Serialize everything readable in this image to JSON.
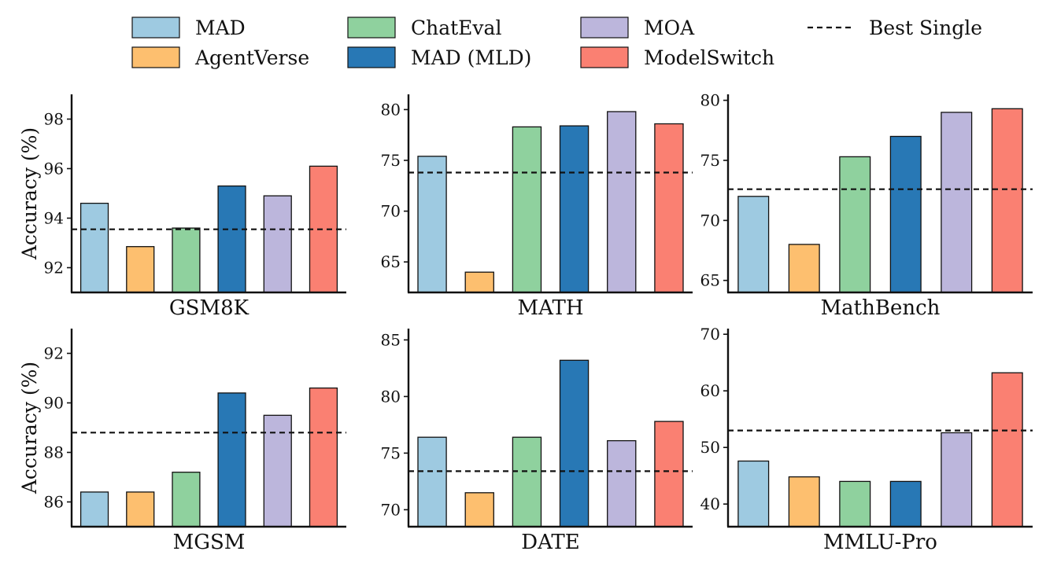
{
  "chart_data": [
    {
      "type": "bar",
      "title": "GSM8K",
      "ylabel": "Accuracy (%)",
      "categories": [
        "MAD",
        "AgentVerse",
        "ChatEval",
        "MAD (MLD)",
        "MOA",
        "ModelSwitch"
      ],
      "values": [
        94.6,
        92.85,
        93.6,
        95.3,
        94.9,
        96.1
      ],
      "baseline": 93.55,
      "ylim": [
        91.0,
        99.0
      ],
      "yticks": [
        92,
        94,
        96,
        98
      ]
    },
    {
      "type": "bar",
      "title": "MATH",
      "ylabel": "",
      "categories": [
        "MAD",
        "AgentVerse",
        "ChatEval",
        "MAD (MLD)",
        "MOA",
        "ModelSwitch"
      ],
      "values": [
        75.4,
        64.0,
        78.3,
        78.4,
        79.8,
        78.6
      ],
      "baseline": 73.8,
      "ylim": [
        62.0,
        81.5
      ],
      "yticks": [
        65,
        70,
        75,
        80
      ]
    },
    {
      "type": "bar",
      "title": "MathBench",
      "ylabel": "",
      "categories": [
        "MAD",
        "AgentVerse",
        "ChatEval",
        "MAD (MLD)",
        "MOA",
        "ModelSwitch"
      ],
      "values": [
        72.0,
        68.0,
        75.3,
        77.0,
        79.0,
        79.3
      ],
      "baseline": 72.6,
      "ylim": [
        64.0,
        80.5
      ],
      "yticks": [
        65,
        70,
        75,
        80
      ]
    },
    {
      "type": "bar",
      "title": "MGSM",
      "ylabel": "Accuracy (%)",
      "categories": [
        "MAD",
        "AgentVerse",
        "ChatEval",
        "MAD (MLD)",
        "MOA",
        "ModelSwitch"
      ],
      "values": [
        86.4,
        86.4,
        87.2,
        90.4,
        89.5,
        90.6
      ],
      "baseline": 88.8,
      "ylim": [
        85.0,
        93.0
      ],
      "yticks": [
        86,
        88,
        90,
        92
      ]
    },
    {
      "type": "bar",
      "title": "DATE",
      "ylabel": "",
      "categories": [
        "MAD",
        "AgentVerse",
        "ChatEval",
        "MAD (MLD)",
        "MOA",
        "ModelSwitch"
      ],
      "values": [
        76.4,
        71.5,
        76.4,
        83.2,
        76.1,
        77.8
      ],
      "baseline": 73.4,
      "ylim": [
        68.5,
        86.0
      ],
      "yticks": [
        70,
        75,
        80,
        85
      ]
    },
    {
      "type": "bar",
      "title": "MMLU-Pro",
      "ylabel": "",
      "categories": [
        "MAD",
        "AgentVerse",
        "ChatEval",
        "MAD (MLD)",
        "MOA",
        "ModelSwitch"
      ],
      "values": [
        47.6,
        44.8,
        44.0,
        44.0,
        52.6,
        63.2
      ],
      "baseline": 53.0,
      "ylim": [
        36.0,
        71.0
      ],
      "yticks": [
        40,
        50,
        60,
        70
      ]
    }
  ],
  "legend": {
    "items": [
      {
        "label": "MAD",
        "color": "#9ecae1"
      },
      {
        "label": "AgentVerse",
        "color": "#fdbf6f"
      },
      {
        "label": "ChatEval",
        "color": "#8fd19e"
      },
      {
        "label": "MAD (MLD)",
        "color": "#2878b5"
      },
      {
        "label": "MOA",
        "color": "#bcb6dc"
      },
      {
        "label": "ModelSwitch",
        "color": "#fa8072"
      }
    ],
    "baseline_label": "Best Single"
  }
}
